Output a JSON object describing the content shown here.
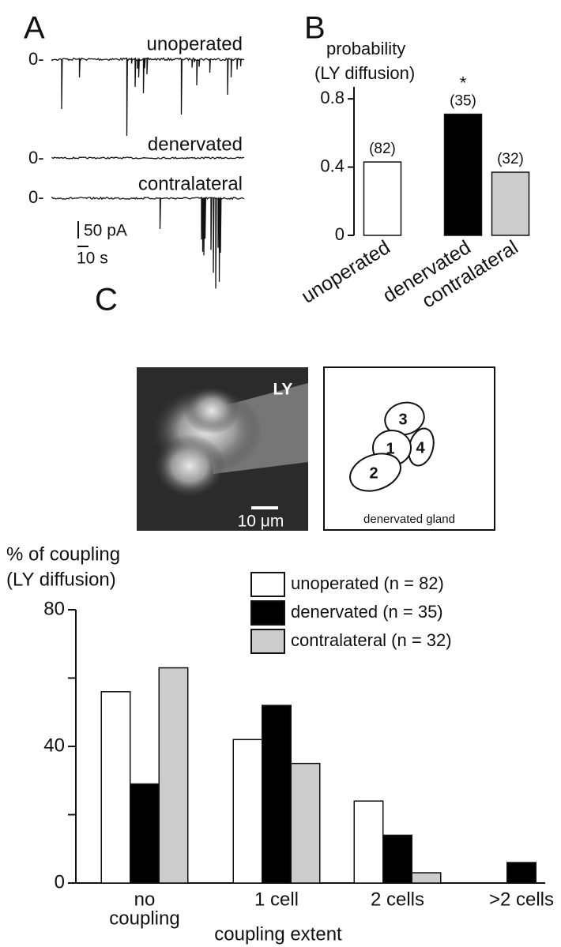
{
  "panel_labels": [
    "A",
    "B",
    "C"
  ],
  "panel_a": {
    "zero_labels": [
      "0-",
      "0-",
      "0-"
    ],
    "trace_labels": [
      "unoperated",
      "denervated",
      "contralateral"
    ],
    "scale_current": "50 pA",
    "scale_time": "10 s"
  },
  "panel_c_image": {
    "dye_label": "LY",
    "scale_label": "10 μm"
  },
  "panel_c_diagram": {
    "cell_labels": [
      "1",
      "2",
      "3",
      "4"
    ],
    "caption": "denervated gland"
  },
  "chart_data": [
    {
      "type": "bar",
      "ylabel": [
        "probability",
        "(LY diffusion)"
      ],
      "categories": [
        "unoperated",
        "denervated",
        "contralateral"
      ],
      "values": [
        0.43,
        0.71,
        0.37
      ],
      "colors": [
        "#ffffff",
        "#000000",
        "#cccccc"
      ],
      "n_labels": [
        "(82)",
        "(35)",
        "(32)"
      ],
      "annotations": [
        {
          "category": 1,
          "text": "*"
        }
      ],
      "ylim": [
        0,
        0.87
      ],
      "yticks": [
        0,
        0.4,
        0.8
      ]
    },
    {
      "type": "grouped-bar",
      "ylabel": [
        "% of coupling",
        "(LY diffusion)"
      ],
      "xlabel": "coupling extent",
      "categories": [
        [
          "no",
          "coupling"
        ],
        [
          "1 cell"
        ],
        [
          "2 cells"
        ],
        [
          ">2 cells"
        ]
      ],
      "series": [
        {
          "name": "unoperated (n = 82)",
          "color": "#ffffff",
          "values": [
            56,
            42,
            24,
            0
          ]
        },
        {
          "name": "denervated (n = 35)",
          "color": "#000000",
          "values": [
            29,
            52,
            14,
            6
          ]
        },
        {
          "name": "contralateral (n = 32)",
          "color": "#cccccc",
          "values": [
            63,
            35,
            3,
            0
          ]
        }
      ],
      "ylim": [
        0,
        80
      ],
      "yticks": [
        0,
        40,
        80
      ],
      "minor_yticks": [
        20,
        60
      ]
    }
  ]
}
